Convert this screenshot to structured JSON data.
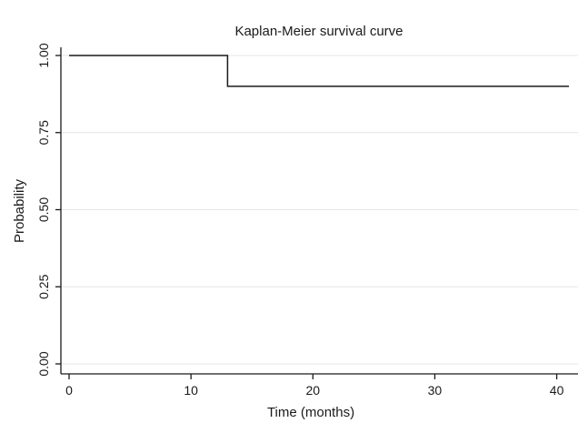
{
  "chart_data": {
    "type": "line",
    "title": "Kaplan-Meier survival curve",
    "xlabel": "Time (months)",
    "ylabel": "Probability",
    "xlim": [
      0,
      41
    ],
    "ylim": [
      0,
      1
    ],
    "x_ticks": [
      0,
      10,
      20,
      30,
      40
    ],
    "y_ticks": [
      "0.00",
      "0.25",
      "0.50",
      "0.75",
      "1.00"
    ],
    "grid": true,
    "step": true,
    "series": [
      {
        "x": [
          0,
          13,
          13,
          41
        ],
        "y": [
          1.0,
          1.0,
          0.9,
          0.9
        ]
      }
    ],
    "colors": {
      "line": "#1a1a1a",
      "grid": "#e6e6e6"
    }
  }
}
